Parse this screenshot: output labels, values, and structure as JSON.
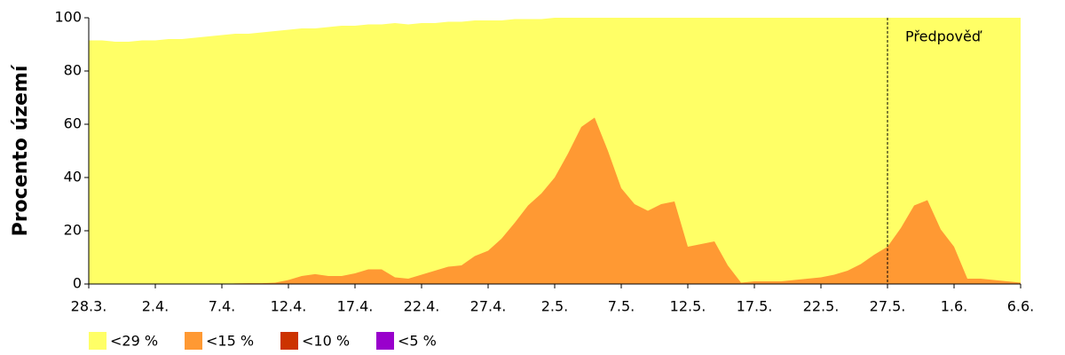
{
  "chart_data": {
    "type": "area",
    "y_label": "Procento území",
    "annotation": "Předpověď",
    "forecast_from": "27.5.",
    "categories": [
      "28.3.",
      null,
      null,
      null,
      null,
      "2.4.",
      null,
      null,
      null,
      null,
      "7.4.",
      null,
      null,
      null,
      null,
      "12.4.",
      null,
      null,
      null,
      null,
      "17.4.",
      null,
      null,
      null,
      null,
      "22.4.",
      null,
      null,
      null,
      null,
      "27.4.",
      null,
      null,
      null,
      null,
      "2.5.",
      null,
      null,
      null,
      null,
      "7.5.",
      null,
      null,
      null,
      null,
      "12.5.",
      null,
      null,
      null,
      null,
      "17.5.",
      null,
      null,
      null,
      null,
      "22.5.",
      null,
      null,
      null,
      null,
      "27.5.",
      null,
      null,
      null,
      null,
      "1.6.",
      null,
      null,
      null,
      null,
      "6.6."
    ],
    "series": [
      {
        "name": "<29 %",
        "color": "#ffff66",
        "values": [
          91.5,
          91.5,
          91,
          91,
          91.5,
          91.5,
          92,
          92,
          92.5,
          93,
          93.5,
          94,
          94,
          94.5,
          95,
          95.5,
          96,
          96,
          96.5,
          97,
          97,
          97.5,
          97.5,
          98,
          97.5,
          98,
          98,
          98.5,
          98.5,
          99,
          99,
          99,
          99.5,
          99.5,
          99.5,
          100,
          100,
          100,
          100,
          100,
          100,
          100,
          100,
          100,
          100,
          100,
          100,
          100,
          100,
          100,
          100,
          100,
          100,
          100,
          100,
          100,
          100,
          100,
          100,
          100,
          100,
          100,
          100,
          100,
          100,
          100,
          100,
          100,
          100,
          100,
          100
        ]
      },
      {
        "name": "<15 %",
        "color": "#ff9933",
        "values": [
          0,
          0,
          0,
          0,
          0,
          0,
          0,
          0,
          0,
          0,
          0,
          0.2,
          0.3,
          0.3,
          0.5,
          1.5,
          3,
          3.7,
          3,
          3,
          4,
          5.5,
          5.5,
          2.5,
          2,
          3.5,
          5,
          6.5,
          7,
          10.5,
          12.5,
          17,
          23,
          29.5,
          34,
          40,
          49,
          59,
          62.5,
          50,
          36,
          30,
          27.5,
          30,
          31,
          14,
          15,
          16,
          7,
          0.5,
          1,
          1,
          1,
          1.5,
          2,
          2.5,
          3.5,
          5,
          7.5,
          11,
          14,
          21,
          29.5,
          31.5,
          20.5,
          14,
          2,
          2,
          1.5,
          1,
          0.5
        ]
      },
      {
        "name": "<10 %",
        "color": "#cc3300",
        "values": [
          0,
          0,
          0,
          0,
          0,
          0,
          0,
          0,
          0,
          0,
          0,
          0,
          0,
          0,
          0,
          0,
          0,
          0,
          0,
          0,
          0,
          0,
          0,
          0,
          0,
          0,
          0,
          0,
          0,
          0,
          0,
          0,
          0,
          0,
          0,
          0,
          0,
          0,
          0,
          0,
          0,
          0,
          0,
          0,
          0,
          0,
          0,
          0,
          0,
          0,
          0,
          0,
          0,
          0,
          0,
          0,
          0,
          0,
          0,
          0,
          0,
          0,
          0,
          0,
          0,
          0,
          0,
          0,
          0,
          0,
          0
        ]
      },
      {
        "name": "<5 %",
        "color": "#9900cc",
        "values": [
          0,
          0,
          0,
          0,
          0,
          0,
          0,
          0,
          0,
          0,
          0,
          0,
          0,
          0,
          0,
          0,
          0,
          0,
          0,
          0,
          0,
          0,
          0,
          0,
          0,
          0,
          0,
          0,
          0,
          0,
          0,
          0,
          0,
          0,
          0,
          0,
          0,
          0,
          0,
          0,
          0,
          0,
          0,
          0,
          0,
          0,
          0,
          0,
          0,
          0,
          0,
          0,
          0,
          0,
          0,
          0,
          0,
          0,
          0,
          0,
          0,
          0,
          0,
          0,
          0,
          0,
          0,
          0,
          0,
          0,
          0
        ]
      }
    ],
    "ylim": [
      0,
      100
    ],
    "yticks": [
      0,
      20,
      40,
      60,
      80,
      100
    ]
  }
}
